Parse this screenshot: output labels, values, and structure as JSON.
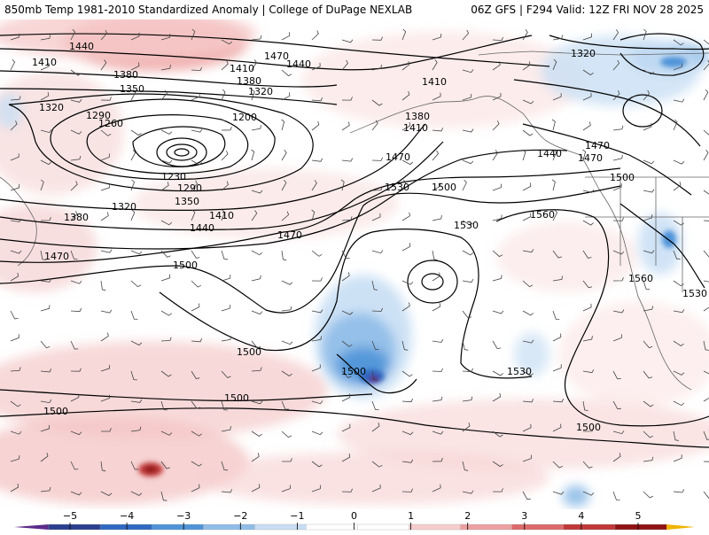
{
  "header": {
    "left": "850mb Temp 1981-2010 Standardized Anomaly | College of DuPage NEXLAB",
    "right": "06Z GFS | F294 Valid: 12Z FRI NOV 28 2025"
  },
  "colorbar": {
    "ticks": [
      "-5",
      "-4",
      "-3",
      "-2",
      "-1",
      "0",
      "1",
      "2",
      "3",
      "4",
      "5"
    ],
    "colors": [
      "#5b2a8a",
      "#2b3f8f",
      "#2f68c0",
      "#4f93d8",
      "#8fbde8",
      "#c8def4",
      "#ffffff",
      "#ffffff",
      "#f6cccc",
      "#eda0a0",
      "#dd6a6a",
      "#c03838",
      "#8e1414",
      "#f0b400"
    ]
  },
  "map": {
    "contour_labels": [
      {
        "id": "1440-a",
        "text": "1440"
      },
      {
        "id": "1410-a",
        "text": "1410"
      },
      {
        "id": "1380-a",
        "text": "1380"
      },
      {
        "id": "1350-a",
        "text": "1350"
      },
      {
        "id": "1320-a",
        "text": "1320"
      },
      {
        "id": "1290-a",
        "text": "1290"
      },
      {
        "id": "1260-a",
        "text": "1260"
      },
      {
        "id": "1200-a",
        "text": "1200"
      },
      {
        "id": "1230-a",
        "text": "1230"
      },
      {
        "id": "1290-b",
        "text": "1290"
      },
      {
        "id": "1320-b",
        "text": "1320"
      },
      {
        "id": "1350-b",
        "text": "1350"
      },
      {
        "id": "1380-b",
        "text": "1380"
      },
      {
        "id": "1410-b",
        "text": "1410"
      },
      {
        "id": "1440-b",
        "text": "1440"
      },
      {
        "id": "1470-a",
        "text": "1470"
      },
      {
        "id": "1470-b",
        "text": "1470"
      },
      {
        "id": "1440-c",
        "text": "1440"
      },
      {
        "id": "1410-c",
        "text": "1410"
      },
      {
        "id": "1380-c",
        "text": "1380"
      },
      {
        "id": "1320-c",
        "text": "1320"
      },
      {
        "id": "1410-d",
        "text": "1410"
      },
      {
        "id": "1470-c",
        "text": "1470"
      },
      {
        "id": "1530-a",
        "text": "1530"
      },
      {
        "id": "1500-a",
        "text": "1500"
      },
      {
        "id": "1380-d",
        "text": "1380"
      },
      {
        "id": "1410-e",
        "text": "1410"
      },
      {
        "id": "1440-d",
        "text": "1440"
      },
      {
        "id": "1470-d",
        "text": "1470"
      },
      {
        "id": "1500-b",
        "text": "1500"
      },
      {
        "id": "1560-a",
        "text": "1560"
      },
      {
        "id": "1530-b",
        "text": "1530"
      },
      {
        "id": "1470-e",
        "text": "1470"
      },
      {
        "id": "1470-f",
        "text": "1470"
      },
      {
        "id": "1500-c",
        "text": "1500"
      },
      {
        "id": "1500-d",
        "text": "1500"
      },
      {
        "id": "1500-e",
        "text": "1500"
      },
      {
        "id": "1500-f",
        "text": "1500"
      },
      {
        "id": "1500-g",
        "text": "1500"
      },
      {
        "id": "1530-c",
        "text": "1530"
      },
      {
        "id": "1560-b",
        "text": "1560"
      },
      {
        "id": "1530-d",
        "text": "1530"
      },
      {
        "id": "1500-h",
        "text": "1500"
      },
      {
        "id": "1320-d",
        "text": "1320"
      }
    ]
  }
}
